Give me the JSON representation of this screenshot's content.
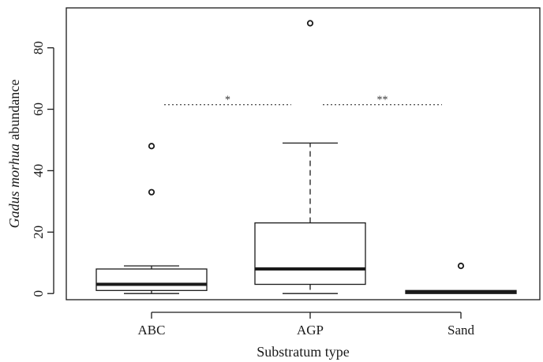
{
  "chart_data": {
    "type": "box",
    "title": "",
    "xlabel": "Substratum type",
    "ylabel_italic": "Gadus morhua",
    "ylabel_rest": " abundance",
    "ylim": [
      -2,
      93
    ],
    "yticks": [
      0,
      20,
      40,
      60,
      80
    ],
    "grid": false,
    "categories": [
      "ABC",
      "AGP",
      "Sand"
    ],
    "boxes": [
      {
        "category": "ABC",
        "min": 0,
        "q1": 1,
        "median": 3,
        "q3": 8,
        "max": 9,
        "outliers": [
          33,
          48
        ]
      },
      {
        "category": "AGP",
        "min": 0,
        "q1": 3,
        "median": 8,
        "q3": 23,
        "max": 49,
        "outliers": [
          88
        ]
      },
      {
        "category": "Sand",
        "min": 0,
        "q1": 0,
        "median": 0.5,
        "q3": 1,
        "max": 1,
        "outliers": [
          9
        ]
      }
    ],
    "significance": [
      {
        "from": "ABC",
        "to": "AGP",
        "y": 61.5,
        "label": "*"
      },
      {
        "from": "AGP",
        "to": "Sand",
        "y": 61.5,
        "label": "**"
      }
    ]
  }
}
